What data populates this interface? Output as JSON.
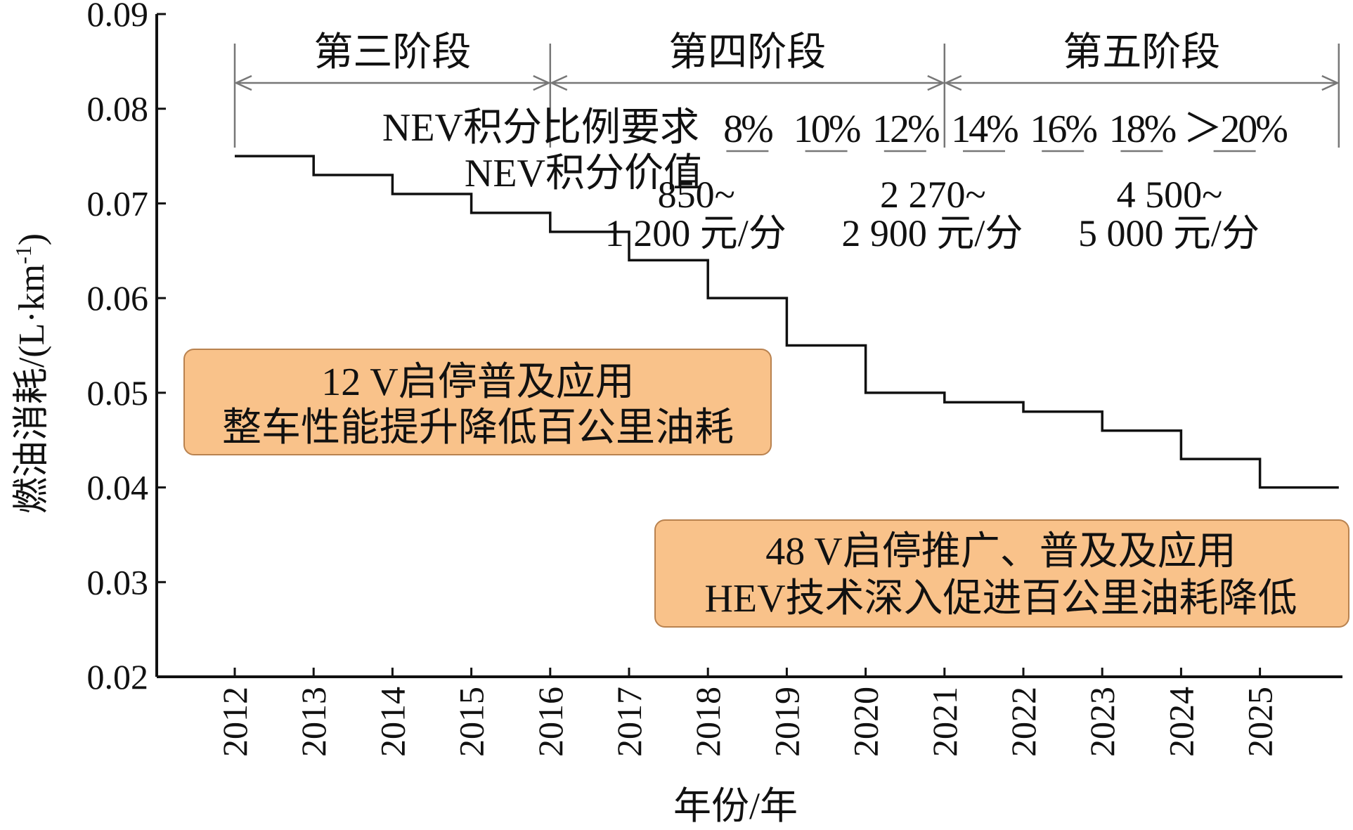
{
  "chart_data": {
    "type": "line",
    "step": true,
    "title": "",
    "xlabel": "年份/年",
    "ylabel": "燃油消耗/(L·km",
    "ylabel_sup": "-1",
    "ylabel_close": ")",
    "ylim": [
      0.02,
      0.09
    ],
    "yticks": [
      "0.02",
      "0.03",
      "0.04",
      "0.05",
      "0.06",
      "0.07",
      "0.08",
      "0.09"
    ],
    "xticks": [
      "2012",
      "2013",
      "2014",
      "2015",
      "2016",
      "2017",
      "2018",
      "2019",
      "2020",
      "2021",
      "2022",
      "2023",
      "2024",
      "2025"
    ],
    "grid": false,
    "x": [
      2012,
      2013,
      2014,
      2015,
      2016,
      2017,
      2018,
      2019,
      2020,
      2021,
      2022,
      2023,
      2024,
      2025
    ],
    "y": [
      0.075,
      0.073,
      0.071,
      0.069,
      0.067,
      0.064,
      0.06,
      0.055,
      0.05,
      0.049,
      0.048,
      0.046,
      0.043,
      0.04
    ],
    "phases": [
      {
        "label": "第三阶段",
        "from": 2012,
        "to": 2016
      },
      {
        "label": "第四阶段",
        "from": 2016,
        "to": 2021
      },
      {
        "label": "第五阶段",
        "from": 2021,
        "to": 2026
      }
    ],
    "nev_ratio": {
      "label": "NEV积分比例要求",
      "values": [
        {
          "year": 2019,
          "text": "8%"
        },
        {
          "year": 2020,
          "text": "10%"
        },
        {
          "year": 2021,
          "text": "12%"
        },
        {
          "year": 2022,
          "text": "14%"
        },
        {
          "year": 2023,
          "text": "16%"
        },
        {
          "year": 2024,
          "text": "18%"
        },
        {
          "year": 2025,
          "text": "＞20%"
        }
      ]
    },
    "nev_value": {
      "label": "NEV积分价值",
      "ranges": [
        {
          "line1": "850~",
          "line2": "1 200 元/分"
        },
        {
          "line1": "2 270~",
          "line2": "2 900 元/分"
        },
        {
          "line1": "4 500~",
          "line2": "5 000 元/分"
        }
      ]
    },
    "annotations": [
      {
        "line1": "12 V启停普及应用",
        "line2": "整车性能提升降低百公里油耗",
        "color": "#f9c28a"
      },
      {
        "line1": "48 V启停推广、普及及应用",
        "line2": "HEV技术深入促进百公里油耗降低",
        "color": "#f9c28a"
      }
    ],
    "colors": {
      "line": "#111111",
      "phase": "#777777",
      "box_fill": "#f9c28a",
      "box_stroke": "#b9824f"
    }
  }
}
